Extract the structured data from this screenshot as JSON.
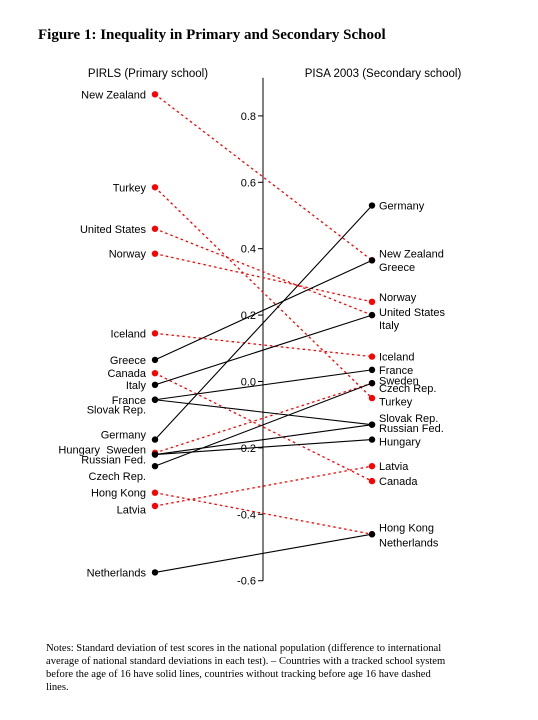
{
  "figure_title": "Figure 1: Inequality in Primary and Secondary School",
  "notes": "Notes: Standard deviation of test scores in the national population (difference to international average of national standard deviations in each test). – Countries with a tracked school system before the age of 16 have solid lines, countries without tracking before age 16 have dashed lines.",
  "colors": {
    "tracked": "#000000",
    "untracked": "#ff0000",
    "axis": "#000000",
    "text": "#000000"
  },
  "chart_data": {
    "type": "slope",
    "title": "",
    "left_header": "PIRLS (Primary school)",
    "right_header": "PISA 2003 (Secondary school)",
    "ylim": [
      -0.6,
      0.9
    ],
    "yticks": [
      -0.6,
      -0.4,
      -0.2,
      0.0,
      0.2,
      0.4,
      0.6,
      0.8
    ],
    "ytick_labels": [
      "-0.6",
      "-0.4",
      "-0.2",
      "0.0",
      "0.2",
      "0.4",
      "0.6",
      "0.8"
    ],
    "series": [
      {
        "name": "New Zealand",
        "tracked": false,
        "primary": 0.865,
        "secondary": 0.365
      },
      {
        "name": "Turkey",
        "tracked": false,
        "primary": 0.585,
        "secondary": -0.05
      },
      {
        "name": "United States",
        "tracked": false,
        "primary": 0.46,
        "secondary": 0.2
      },
      {
        "name": "Norway",
        "tracked": false,
        "primary": 0.385,
        "secondary": 0.24
      },
      {
        "name": "Iceland",
        "tracked": false,
        "primary": 0.145,
        "secondary": 0.075
      },
      {
        "name": "Canada",
        "tracked": false,
        "primary": 0.025,
        "secondary": -0.3
      },
      {
        "name": "Sweden",
        "tracked": false,
        "primary": -0.215,
        "secondary": -0.005
      },
      {
        "name": "Hong Kong",
        "tracked": false,
        "primary": -0.335,
        "secondary": -0.46
      },
      {
        "name": "Latvia",
        "tracked": false,
        "primary": -0.375,
        "secondary": -0.255
      },
      {
        "name": "Greece",
        "tracked": true,
        "primary": 0.065,
        "secondary": 0.365
      },
      {
        "name": "Italy",
        "tracked": true,
        "primary": -0.01,
        "secondary": 0.2
      },
      {
        "name": "France",
        "tracked": true,
        "primary": -0.055,
        "secondary": 0.035
      },
      {
        "name": "Slovak Rep.",
        "tracked": true,
        "primary": -0.055,
        "secondary": -0.13
      },
      {
        "name": "Germany",
        "tracked": true,
        "primary": -0.175,
        "secondary": 0.53
      },
      {
        "name": "Hungary",
        "tracked": true,
        "primary": -0.22,
        "secondary": -0.175
      },
      {
        "name": "Russian Fed.",
        "tracked": true,
        "primary": -0.22,
        "secondary": -0.13
      },
      {
        "name": "Czech Rep.",
        "tracked": true,
        "primary": -0.255,
        "secondary": -0.005
      },
      {
        "name": "Netherlands",
        "tracked": true,
        "primary": -0.575,
        "secondary": -0.46
      }
    ],
    "left_labels": [
      {
        "text": "New Zealand",
        "y": 0.865
      },
      {
        "text": "Turkey",
        "y": 0.585
      },
      {
        "text": "United States",
        "y": 0.46
      },
      {
        "text": "Norway",
        "y": 0.385
      },
      {
        "text": "Iceland",
        "y": 0.145
      },
      {
        "text": "Greece",
        "y": 0.065
      },
      {
        "text": "Canada",
        "y": 0.025
      },
      {
        "text": "Italy",
        "y": -0.01
      },
      {
        "text": "France",
        "y": -0.055
      },
      {
        "text": "Slovak Rep.",
        "y": -0.085
      },
      {
        "text": "Germany",
        "y": -0.16
      },
      {
        "text": "Hungary",
        "y": -0.205,
        "stack": "left"
      },
      {
        "text": "Sweden",
        "y": -0.205,
        "stack": "right"
      },
      {
        "text": "Russian Fed.",
        "y": -0.235
      },
      {
        "text": "Czech Rep.",
        "y": -0.285
      },
      {
        "text": "Hong Kong",
        "y": -0.335
      },
      {
        "text": "Latvia",
        "y": -0.385
      },
      {
        "text": "Netherlands",
        "y": -0.575
      }
    ],
    "right_labels": [
      {
        "text": "Germany",
        "y": 0.53
      },
      {
        "text": "New Zealand",
        "y": 0.385
      },
      {
        "text": "Greece",
        "y": 0.345
      },
      {
        "text": "Norway",
        "y": 0.255
      },
      {
        "text": "United States",
        "y": 0.21
      },
      {
        "text": "Italy",
        "y": 0.17
      },
      {
        "text": "Iceland",
        "y": 0.075
      },
      {
        "text": "France",
        "y": 0.035
      },
      {
        "text": "Sweden",
        "y": 0.003
      },
      {
        "text": "Czech Rep.",
        "y": -0.02
      },
      {
        "text": "Turkey",
        "y": -0.06
      },
      {
        "text": "Slovak Rep.",
        "y": -0.11
      },
      {
        "text": "Russian Fed.",
        "y": -0.14
      },
      {
        "text": "Hungary",
        "y": -0.18
      },
      {
        "text": "Latvia",
        "y": -0.255
      },
      {
        "text": "Canada",
        "y": -0.3
      },
      {
        "text": "Hong Kong",
        "y": -0.44
      },
      {
        "text": "Netherlands",
        "y": -0.485
      }
    ]
  }
}
